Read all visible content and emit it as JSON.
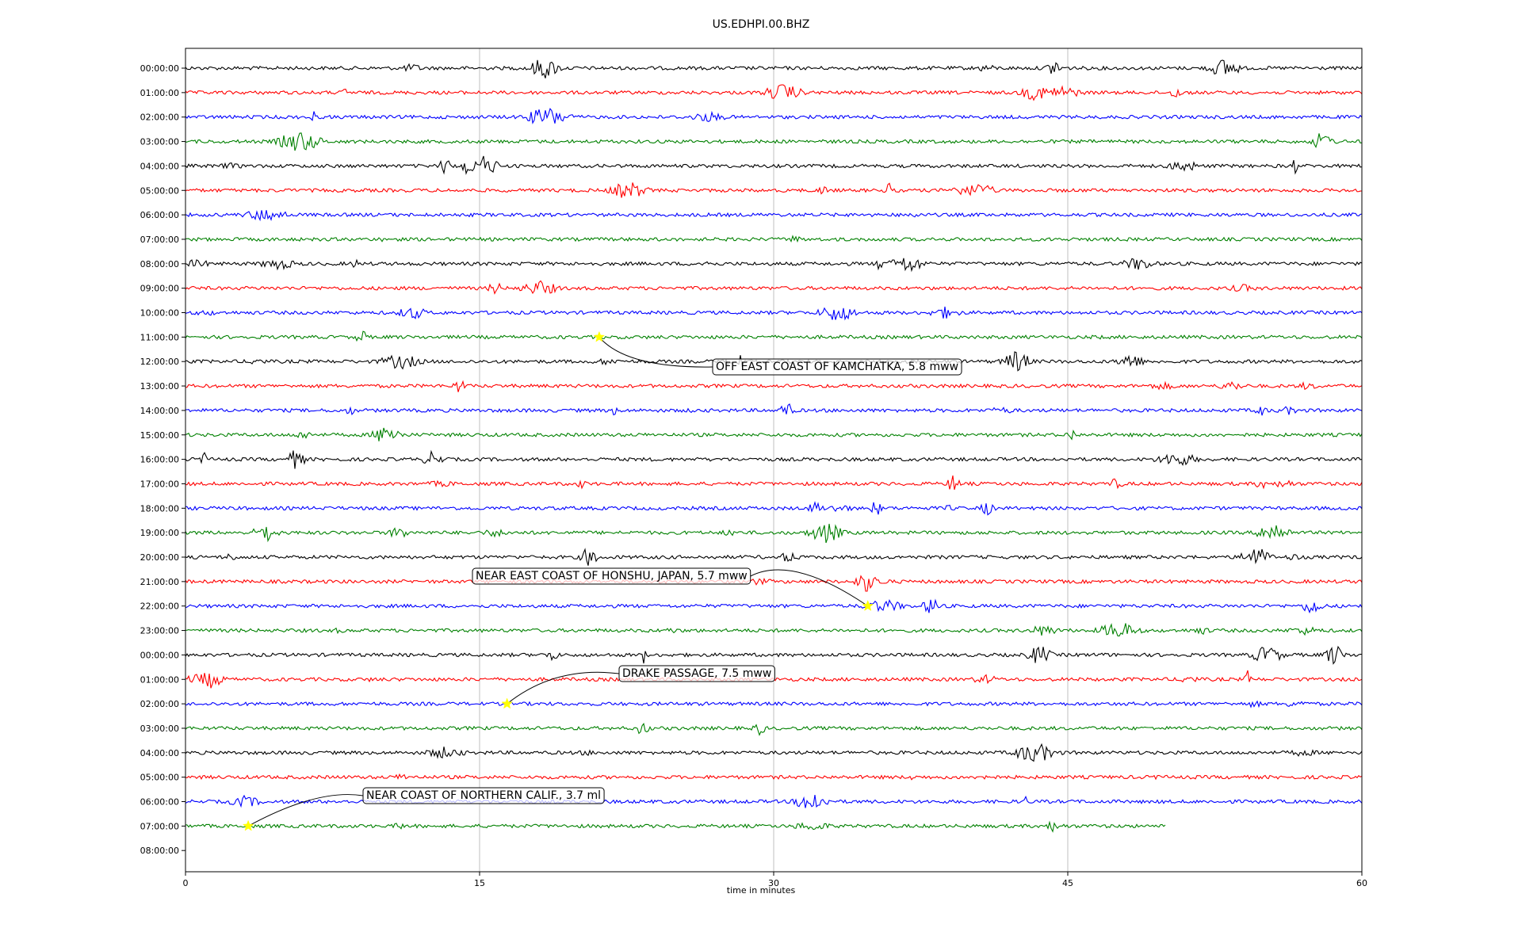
{
  "chart_data": {
    "type": "line",
    "title": "US.EDHPI.00.BHZ",
    "xlabel": "time in minutes",
    "ylabel": "",
    "xlim": [
      0,
      60
    ],
    "x_ticks": [
      0,
      15,
      30,
      45,
      60
    ],
    "x_tick_labels": [
      "0",
      "15",
      "30",
      "45",
      "60"
    ],
    "grid": "vertical lines at x ticks",
    "row_labels": [
      "00:00:00",
      "01:00:00",
      "02:00:00",
      "03:00:00",
      "04:00:00",
      "05:00:00",
      "06:00:00",
      "07:00:00",
      "08:00:00",
      "09:00:00",
      "10:00:00",
      "11:00:00",
      "12:00:00",
      "13:00:00",
      "14:00:00",
      "15:00:00",
      "16:00:00",
      "17:00:00",
      "18:00:00",
      "19:00:00",
      "20:00:00",
      "21:00:00",
      "22:00:00",
      "23:00:00",
      "00:00:00",
      "01:00:00",
      "02:00:00",
      "03:00:00",
      "04:00:00",
      "05:00:00",
      "06:00:00",
      "07:00:00",
      "08:00:00"
    ],
    "trace_colors": [
      "#000000",
      "#ff0000",
      "#0000ff",
      "#008000"
    ],
    "last_trace_end_minute": 50,
    "annotations": [
      {
        "text": "OFF EAST COAST OF KAMCHATKA, 5.8 mww",
        "row": 11,
        "minute": 21.1
      },
      {
        "text": "NEAR EAST COAST OF HONSHU, JAPAN, 5.7 mww",
        "row": 22,
        "minute": 34.8
      },
      {
        "text": "DRAKE PASSAGE, 7.5 mww",
        "row": 26,
        "minute": 16.4
      },
      {
        "text": "NEAR COAST OF NORTHERN CALIF., 3.7 ml",
        "row": 31,
        "minute": 3.2
      }
    ],
    "marker_color": "#ffff00"
  }
}
